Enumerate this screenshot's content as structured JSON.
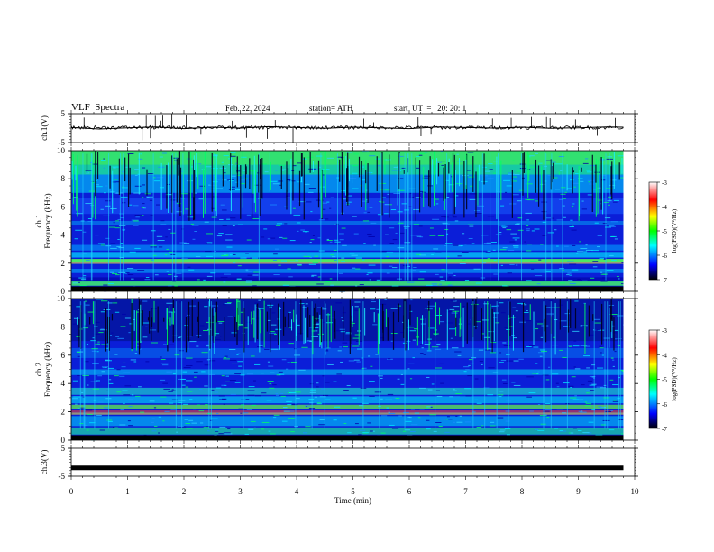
{
  "header": {
    "title": "VLF  Spectra",
    "date": "Feb. 22, 2024",
    "station": "station= ATH",
    "start": "start  UT  =   20: 20: 1"
  },
  "chart_data": [
    {
      "type": "line",
      "ylabel": "ch.1(V)",
      "ylim": [
        -5,
        5
      ],
      "y_ticks": [
        "5",
        "-5"
      ],
      "x": [
        0,
        0.5,
        1,
        1.5,
        2,
        2.5,
        3,
        3.5,
        4,
        4.5,
        5,
        5.5,
        6,
        6.5,
        7,
        7.5,
        8,
        8.5,
        9,
        9.5,
        9.8
      ],
      "values": [
        0.2,
        -0.3,
        0.1,
        0.4,
        -0.2,
        0.3,
        0.0,
        0.5,
        0.2,
        -0.1,
        0.3,
        0.1,
        -0.2,
        0.4,
        0.2,
        0.0,
        0.3,
        -0.1,
        0.1,
        0.4,
        0.3
      ]
    },
    {
      "type": "heatmap",
      "ylabel": "ch.1\nFrequency  (kHz)",
      "ylim": [
        0,
        10
      ],
      "y_ticks": [
        "0",
        "2",
        "4",
        "6",
        "8",
        "10"
      ],
      "colorbar": {
        "label": "log(PSD)(V²/Hz)",
        "range": [
          -7,
          -3
        ],
        "ticks": [
          "-3",
          "-4",
          "-5",
          "-6",
          "-7"
        ]
      }
    },
    {
      "type": "heatmap",
      "ylabel": "ch.2\nFrequency  (kHz)",
      "ylim": [
        0,
        10
      ],
      "y_ticks": [
        "0",
        "2",
        "4",
        "6",
        "8",
        "10"
      ],
      "colorbar": {
        "label": "log(PSD)(V²/Hz)",
        "range": [
          -7,
          -3
        ],
        "ticks": [
          "-3",
          "-4",
          "-5",
          "-6",
          "-7"
        ]
      }
    },
    {
      "type": "line",
      "ylabel": "ch.3(V)",
      "ylim": [
        -5,
        5
      ],
      "y_ticks": [
        "5",
        "-5"
      ],
      "x": [
        0,
        9.8
      ],
      "values": [
        -2,
        -2
      ]
    }
  ],
  "xaxis": {
    "label": "Time  (min)",
    "ticks": [
      "0",
      "1",
      "2",
      "3",
      "4",
      "5",
      "6",
      "7",
      "8",
      "9",
      "10"
    ],
    "range": [
      0,
      10
    ]
  },
  "colors": {
    "colormap": [
      "#000000",
      "#0000ff",
      "#00ffff",
      "#00ff00",
      "#ffff00",
      "#ff0000",
      "#ffffff"
    ]
  }
}
